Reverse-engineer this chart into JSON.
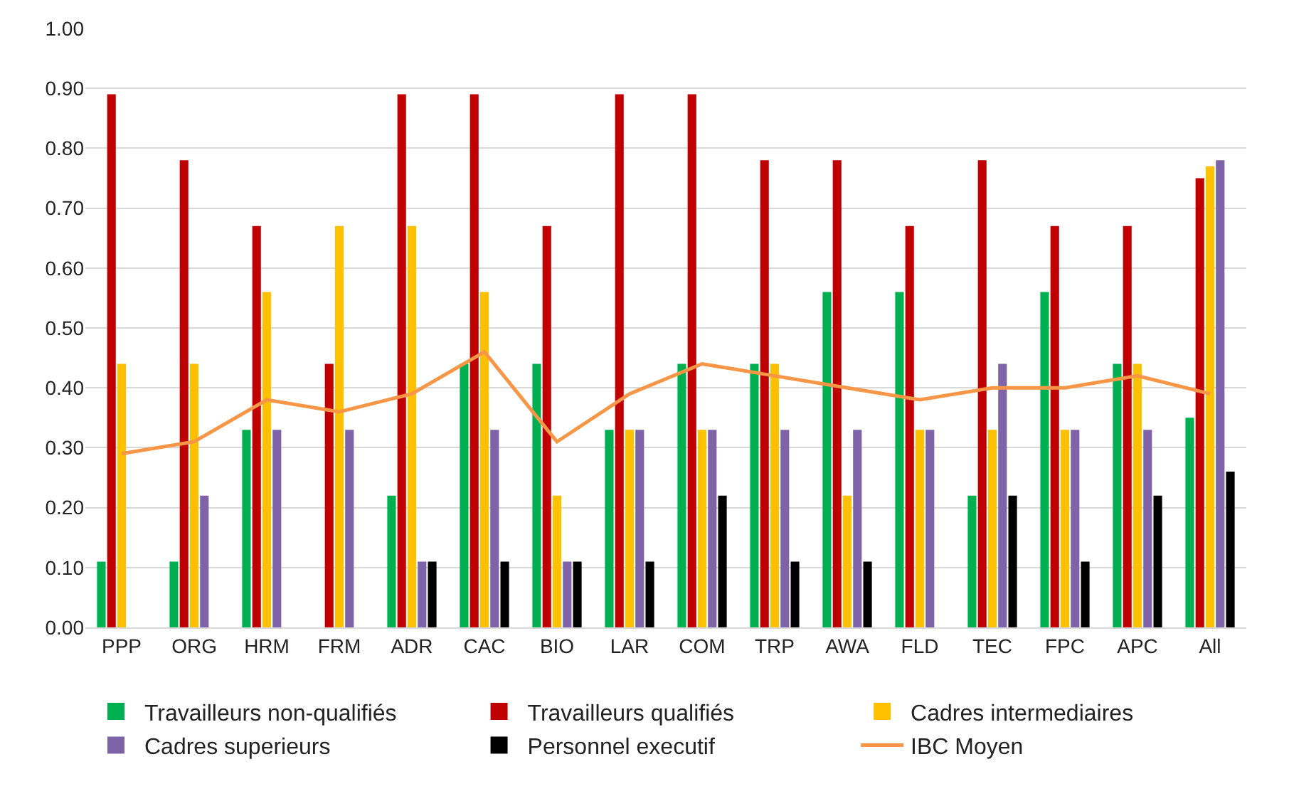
{
  "chart_data": {
    "type": "bar",
    "categories": [
      "PPP",
      "ORG",
      "HRM",
      "FRM",
      "ADR",
      "CAC",
      "BIO",
      "LAR",
      "COM",
      "TRP",
      "AWA",
      "FLD",
      "TEC",
      "FPC",
      "APC",
      "All"
    ],
    "series": [
      {
        "name": "Travailleurs non-qualifiés",
        "color": "#00b050",
        "values": [
          0.11,
          0.11,
          0.33,
          0,
          0.22,
          0.44,
          0.44,
          0.33,
          0.44,
          0.44,
          0.56,
          0.56,
          0.22,
          0.56,
          0.44,
          0.35
        ]
      },
      {
        "name": "Travailleurs qualifiés",
        "color": "#c00000",
        "values": [
          0.89,
          0.78,
          0.67,
          0.44,
          0.89,
          0.89,
          0.67,
          0.89,
          0.89,
          0.78,
          0.78,
          0.67,
          0.78,
          0.67,
          0.67,
          0.75
        ]
      },
      {
        "name": "Cadres intermediaires",
        "color": "#ffc000",
        "values": [
          0.44,
          0.44,
          0.56,
          0.67,
          0.67,
          0.56,
          0.22,
          0.33,
          0.33,
          0.44,
          0.22,
          0.33,
          0.33,
          0.33,
          0.44,
          0.77
        ]
      },
      {
        "name": "Cadres superieurs",
        "color": "#7f63a8",
        "values": [
          0,
          0.22,
          0.33,
          0.33,
          0.11,
          0.33,
          0.11,
          0.33,
          0.33,
          0.33,
          0.33,
          0.33,
          0.44,
          0.33,
          0.33,
          0.78
        ]
      },
      {
        "name": "Personnel executif",
        "color": "#000000",
        "values": [
          0,
          0,
          0,
          0,
          0.11,
          0.11,
          0.11,
          0.11,
          0.22,
          0.11,
          0.11,
          0,
          0.22,
          0.11,
          0.22,
          0.26
        ]
      },
      {
        "name": "IBC Moyen",
        "type": "line",
        "color": "#f79646",
        "values": [
          0.29,
          0.31,
          0.38,
          0.36,
          0.39,
          0.46,
          0.31,
          0.39,
          0.44,
          0.42,
          0.4,
          0.38,
          0.4,
          0.4,
          0.42,
          0.39
        ]
      }
    ],
    "ylim": [
      0,
      1
    ],
    "yticks": [
      {
        "value": 0,
        "label": "0.00"
      },
      {
        "value": 0.1,
        "label": "0.10"
      },
      {
        "value": 0.2,
        "label": "0.20"
      },
      {
        "value": 0.3,
        "label": "0.30"
      },
      {
        "value": 0.4,
        "label": "0.40"
      },
      {
        "value": 0.5,
        "label": "0.50"
      },
      {
        "value": 0.6,
        "label": "0.60"
      },
      {
        "value": 0.7,
        "label": "0.70"
      },
      {
        "value": 0.8,
        "label": "0.80"
      },
      {
        "value": 0.9,
        "label": "0.90"
      },
      {
        "value": 1,
        "label": "1.00"
      }
    ],
    "grid": "y",
    "legend": "bottom"
  }
}
